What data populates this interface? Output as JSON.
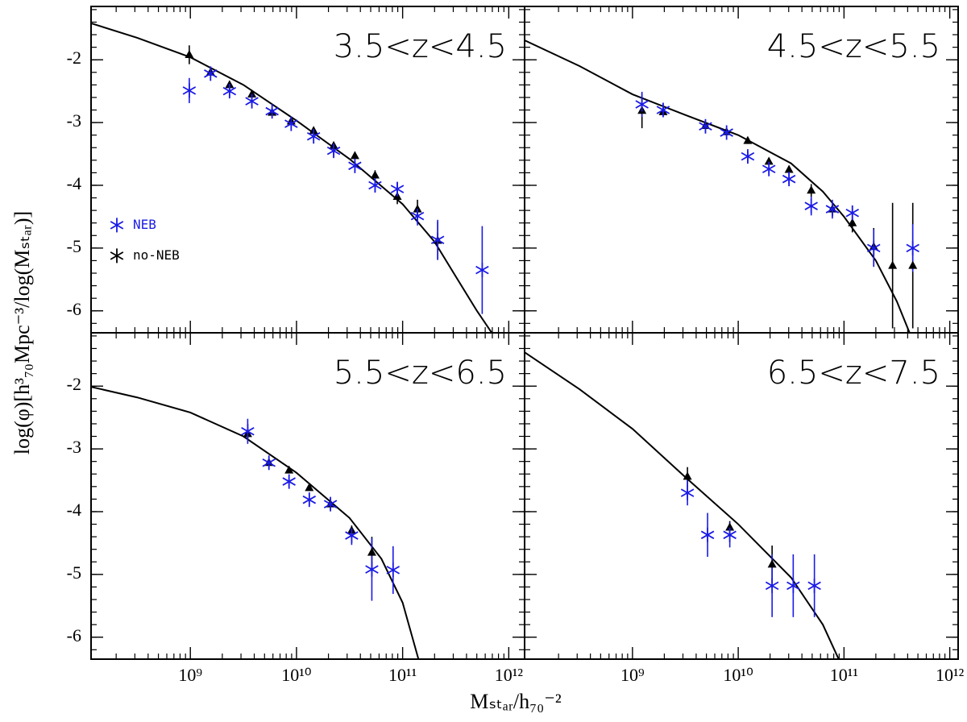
{
  "xlabel": "Mₛₜₐᵣ/h₇₀⁻²",
  "ylabel": "log(φ)[h³₇₀Mpc⁻³/log(Mₛₜₐᵣ)]",
  "chart_data": [
    {
      "type": "scatter",
      "title": "3.5<z<4.5",
      "xlog": true,
      "legend": "center left",
      "xlim": [
        116000000.0,
        1410000000000.0
      ],
      "ylim": [
        -6.35,
        -1.15
      ],
      "xticks": [
        1000000000.0,
        10000000000.0,
        100000000000.0,
        1000000000000.0
      ],
      "yticks": [
        -6,
        -5,
        -4,
        -3,
        -2
      ],
      "series": [
        {
          "name": "NEB",
          "color": "#1a1ae6",
          "marker": "star",
          "x": [
            977000000.0,
            1550000000.0,
            2340000000.0,
            3800000000.0,
            5890000000.0,
            8910000000.0,
            14500000000.0,
            22400000000.0,
            35500000000.0,
            55000000000.0,
            89100000000.0,
            138000000000.0,
            214000000000.0,
            562000000000.0
          ],
          "values": [
            -2.49,
            -2.22,
            -2.5,
            -2.66,
            -2.82,
            -3.02,
            -3.22,
            -3.45,
            -3.69,
            -4.0,
            -4.06,
            -4.49,
            -4.87,
            -5.35
          ],
          "errors": [
            0.2,
            0.07,
            0.08,
            0.08,
            0.06,
            0.06,
            0.07,
            0.08,
            0.08,
            0.1,
            0.1,
            0.15,
            0.32,
            0.7
          ]
        },
        {
          "name": "no-NEB",
          "color": "#000000",
          "marker": "triangle",
          "x": [
            977000000.0,
            1550000000.0,
            2340000000.0,
            3800000000.0,
            5890000000.0,
            8910000000.0,
            14500000000.0,
            22400000000.0,
            35500000000.0,
            55000000000.0,
            89100000000.0,
            138000000000.0,
            214000000000.0
          ],
          "values": [
            -1.92,
            -2.2,
            -2.4,
            -2.55,
            -2.84,
            -2.98,
            -3.13,
            -3.37,
            -3.53,
            -3.84,
            -4.18,
            -4.38,
            -4.88
          ],
          "errors": [
            0.15,
            0.05,
            0.05,
            0.05,
            0.05,
            0.05,
            0.05,
            0.05,
            0.06,
            0.08,
            0.12,
            0.15,
            0.3
          ]
        }
      ],
      "fit": {
        "x": [
          117000000.0,
          316000000.0,
          1000000000.0,
          3160000000.0,
          10000000000.0,
          31600000000.0,
          100000000000.0,
          200000000000.0,
          316000000000.0,
          501000000000.0,
          692000000000.0
        ],
        "values": [
          -1.42,
          -1.65,
          -1.96,
          -2.4,
          -2.97,
          -3.58,
          -4.3,
          -4.9,
          -5.45,
          -6.0,
          -6.35
        ]
      }
    },
    {
      "type": "scatter",
      "title": "4.5<z<5.5",
      "xlog": true,
      "xlim": [
        95500000.0,
        1200000000000.0
      ],
      "ylim": [
        -6.35,
        -1.15
      ],
      "xticks": [
        1000000000.0,
        10000000000.0,
        100000000000.0,
        1000000000000.0
      ],
      "yticks": [
        -6,
        -5,
        -4,
        -3,
        -2
      ],
      "series": [
        {
          "name": "NEB",
          "color": "#1a1ae6",
          "marker": "star",
          "x": [
            1230000000.0,
            1950000000.0,
            4900000000.0,
            7760000000.0,
            12300000000.0,
            19500000000.0,
            30200000000.0,
            49000000000.0,
            77600000000.0,
            120000000000.0,
            191000000000.0,
            447000000000.0
          ],
          "values": [
            -2.71,
            -2.8,
            -3.06,
            -3.16,
            -3.54,
            -3.74,
            -3.9,
            -4.33,
            -4.38,
            -4.44,
            -5.0,
            -5.0
          ],
          "errors": [
            0.2,
            0.08,
            0.06,
            0.07,
            0.08,
            0.08,
            0.08,
            0.15,
            0.15,
            0.12,
            0.3,
            0.38
          ]
        },
        {
          "name": "no-NEB",
          "color": "#000000",
          "marker": "triangle",
          "x": [
            1230000000.0,
            1950000000.0,
            4900000000.0,
            7760000000.0,
            12300000000.0,
            19500000000.0,
            30200000000.0,
            49000000000.0,
            77600000000.0,
            120000000000.0,
            191000000000.0,
            288000000000.0,
            447000000000.0
          ],
          "values": [
            -2.81,
            -2.83,
            -3.05,
            -3.15,
            -3.29,
            -3.62,
            -3.75,
            -4.08,
            -4.38,
            -4.6,
            -4.98,
            -5.28,
            -5.28
          ],
          "errors": [
            0.28,
            0.06,
            0.05,
            0.05,
            0.05,
            0.05,
            0.06,
            0.1,
            0.1,
            0.15,
            0.3,
            1.0,
            1.0
          ]
        }
      ],
      "fit": {
        "x": [
          95500000.0,
          316000000.0,
          1000000000.0,
          3160000000.0,
          10000000000.0,
          31600000000.0,
          63100000000.0,
          100000000000.0,
          200000000000.0,
          316000000000.0,
          417000000000.0
        ],
        "values": [
          -1.69,
          -2.1,
          -2.55,
          -2.88,
          -3.2,
          -3.65,
          -4.1,
          -4.5,
          -5.2,
          -5.85,
          -6.35
        ]
      }
    },
    {
      "type": "scatter",
      "title": "5.5<z<6.5",
      "xlog": true,
      "xlim": [
        116000000.0,
        1410000000000.0
      ],
      "ylim": [
        -6.35,
        -1.15
      ],
      "xticks": [
        {
          "value": 1000000000.0,
          "label": "10⁹"
        },
        {
          "value": 10000000000.0,
          "label": "10¹⁰"
        },
        {
          "value": 100000000000.0,
          "label": "10¹¹"
        },
        {
          "value": 1000000000000.0,
          "label": "10¹²"
        }
      ],
      "yticks": [
        -6,
        -5,
        -4,
        -3,
        -2
      ],
      "series": [
        {
          "name": "NEB",
          "color": "#1a1ae6",
          "marker": "star",
          "x": [
            3470000000.0,
            5500000000.0,
            8510000000.0,
            13200000000.0,
            20900000000.0,
            33100000000.0,
            51300000000.0,
            81300000000.0
          ],
          "values": [
            -2.72,
            -3.22,
            -3.52,
            -3.81,
            -3.88,
            -4.38,
            -4.92,
            -4.93
          ],
          "errors": [
            0.2,
            0.07,
            0.08,
            0.08,
            0.08,
            0.15,
            0.5,
            0.38
          ]
        },
        {
          "name": "no-NEB",
          "color": "#000000",
          "marker": "triangle",
          "x": [
            3470000000.0,
            5500000000.0,
            8510000000.0,
            13200000000.0,
            20900000000.0,
            33100000000.0,
            51300000000.0
          ],
          "values": [
            -2.76,
            -3.22,
            -3.34,
            -3.62,
            -3.88,
            -4.3,
            -4.65
          ],
          "errors": [
            0.1,
            0.05,
            0.05,
            0.05,
            0.05,
            0.08,
            0.25
          ]
        }
      ],
      "fit": {
        "x": [
          115000000.0,
          316000000.0,
          1000000000.0,
          3160000000.0,
          10000000000.0,
          31600000000.0,
          63100000000.0,
          100000000000.0,
          141000000000.0
        ],
        "values": [
          -2.01,
          -2.18,
          -2.42,
          -2.8,
          -3.38,
          -4.1,
          -4.75,
          -5.45,
          -6.35
        ]
      }
    },
    {
      "type": "scatter",
      "title": "6.5<z<7.5",
      "xlog": true,
      "xlim": [
        95500000.0,
        1200000000000.0
      ],
      "ylim": [
        -6.35,
        -1.15
      ],
      "xticks": [
        {
          "value": 1000000000.0,
          "label": "10⁹"
        },
        {
          "value": 10000000000.0,
          "label": "10¹⁰"
        },
        {
          "value": 100000000000.0,
          "label": "10¹¹"
        },
        {
          "value": 1000000000000.0,
          "label": "10¹²"
        }
      ],
      "yticks": [
        -6,
        -5,
        -4,
        -3,
        -2
      ],
      "series": [
        {
          "name": "NEB",
          "color": "#1a1ae6",
          "marker": "star",
          "x": [
            3310000000.0,
            5130000000.0,
            8320000000.0,
            20900000000.0,
            33100000000.0,
            52500000000.0
          ],
          "values": [
            -3.7,
            -4.37,
            -4.37,
            -5.18,
            -5.18,
            -5.18
          ],
          "errors": [
            0.2,
            0.35,
            0.2,
            0.5,
            0.5,
            0.5
          ]
        },
        {
          "name": "no-NEB",
          "color": "#000000",
          "marker": "triangle",
          "x": [
            3310000000.0,
            8320000000.0,
            20900000000.0
          ],
          "values": [
            -3.44,
            -4.25,
            -4.84
          ],
          "errors": [
            0.15,
            0.1,
            0.3
          ]
        }
      ],
      "fit": {
        "x": [
          95500000.0,
          316000000.0,
          1000000000.0,
          3160000000.0,
          10000000000.0,
          31600000000.0,
          63100000000.0,
          89100000000.0
        ],
        "values": [
          -1.46,
          -2.05,
          -2.68,
          -3.45,
          -4.2,
          -5.05,
          -5.8,
          -6.35
        ]
      }
    }
  ]
}
